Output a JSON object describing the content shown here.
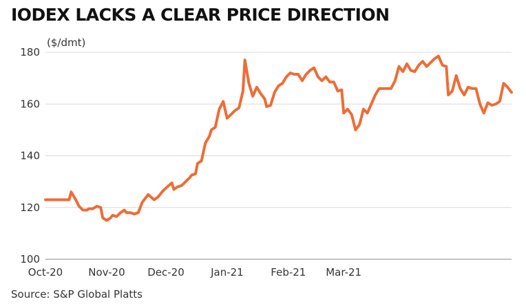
{
  "title": "IODEX LACKS A CLEAR PRICE DIRECTION",
  "source": "Source: S&P Global Platts",
  "chart_data": {
    "type": "line",
    "title": "IODEX LACKS A CLEAR PRICE DIRECTION",
    "ylabel": "($/dmt)",
    "xlabel": "",
    "ylim": [
      100,
      180
    ],
    "yticks": [
      100,
      120,
      140,
      160,
      180
    ],
    "xticks": [
      "Oct-20",
      "Nov-20",
      "Dec-20",
      "Jan-21",
      "Feb-21",
      "Mar-21"
    ],
    "grid": "horizontal",
    "line_color": "#ee6c35",
    "grid_color": "#d9d9d9",
    "x_unit": "days since Oct-20",
    "series": [
      {
        "name": "",
        "points": [
          [
            0,
            123
          ],
          [
            2,
            123
          ],
          [
            4,
            123
          ],
          [
            6,
            123
          ],
          [
            8,
            123
          ],
          [
            10,
            123
          ],
          [
            12,
            123
          ],
          [
            13,
            126
          ],
          [
            15,
            123.5
          ],
          [
            17,
            120.5
          ],
          [
            19,
            119
          ],
          [
            21,
            119
          ],
          [
            22,
            119.5
          ],
          [
            24,
            119.5
          ],
          [
            26,
            120.5
          ],
          [
            28,
            120
          ],
          [
            29,
            116
          ],
          [
            31,
            115
          ],
          [
            33,
            116
          ],
          [
            34,
            117
          ],
          [
            36,
            116.5
          ],
          [
            38,
            118
          ],
          [
            40,
            119
          ],
          [
            41,
            118
          ],
          [
            43,
            118
          ],
          [
            45,
            117.5
          ],
          [
            47,
            118
          ],
          [
            49,
            122
          ],
          [
            52,
            125
          ],
          [
            55,
            123
          ],
          [
            57,
            124
          ],
          [
            59,
            126
          ],
          [
            61,
            127.5
          ],
          [
            64,
            129.5
          ],
          [
            65,
            127
          ],
          [
            67,
            128
          ],
          [
            69,
            128.5
          ],
          [
            71,
            130
          ],
          [
            73,
            131.5
          ],
          [
            74,
            132.5
          ],
          [
            76,
            133
          ],
          [
            77,
            137
          ],
          [
            79,
            138
          ],
          [
            81,
            145
          ],
          [
            83,
            147.5
          ],
          [
            84,
            150
          ],
          [
            86,
            151
          ],
          [
            88,
            158
          ],
          [
            90,
            161
          ],
          [
            92,
            154.5
          ],
          [
            94,
            156
          ],
          [
            96,
            157.5
          ],
          [
            98,
            158.5
          ],
          [
            100,
            165
          ],
          [
            101,
            177
          ],
          [
            103,
            168
          ],
          [
            105,
            163
          ],
          [
            107,
            166.5
          ],
          [
            109,
            164
          ],
          [
            111,
            162
          ],
          [
            112,
            159
          ],
          [
            114,
            159.5
          ],
          [
            116,
            164.5
          ],
          [
            118,
            167
          ],
          [
            120,
            168
          ],
          [
            122,
            170.5
          ],
          [
            124,
            172
          ],
          [
            126,
            171.5
          ],
          [
            128,
            171.5
          ],
          [
            130,
            169
          ],
          [
            132,
            171.5
          ],
          [
            134,
            173
          ],
          [
            136,
            174
          ],
          [
            138,
            170.5
          ],
          [
            140,
            169
          ],
          [
            142,
            170.5
          ],
          [
            144,
            168.5
          ],
          [
            146,
            168.5
          ],
          [
            148,
            165
          ],
          [
            150,
            165.5
          ],
          [
            151,
            156.5
          ],
          [
            153,
            158
          ],
          [
            155,
            156
          ],
          [
            157,
            150
          ],
          [
            159,
            152
          ],
          [
            161,
            158
          ],
          [
            163,
            156.5
          ],
          [
            165,
            160
          ],
          [
            167,
            163.5
          ],
          [
            169,
            166
          ],
          [
            171,
            166
          ],
          [
            173,
            166
          ],
          [
            175,
            166
          ],
          [
            177,
            169
          ],
          [
            179,
            174.5
          ],
          [
            181,
            172.5
          ],
          [
            183,
            175.5
          ],
          [
            185,
            173
          ],
          [
            187,
            172.5
          ],
          [
            189,
            175
          ],
          [
            191,
            176.5
          ],
          [
            193,
            174.5
          ],
          [
            195,
            176
          ],
          [
            197,
            177.5
          ],
          [
            199,
            178.5
          ],
          [
            201,
            175
          ],
          [
            203,
            174.5
          ],
          [
            204,
            163.5
          ],
          [
            206,
            165
          ],
          [
            208,
            171
          ],
          [
            210,
            166
          ],
          [
            212,
            163.5
          ],
          [
            214,
            166.5
          ],
          [
            216,
            166
          ],
          [
            218,
            166
          ],
          [
            220,
            160
          ],
          [
            222,
            156.5
          ],
          [
            224,
            160.5
          ],
          [
            226,
            159.5
          ],
          [
            228,
            160
          ],
          [
            230,
            161
          ],
          [
            232,
            168
          ],
          [
            234,
            166.5
          ],
          [
            236,
            164.5
          ]
        ]
      }
    ],
    "xtick_positions_days": [
      0,
      31,
      61,
      92,
      123,
      151
    ]
  }
}
